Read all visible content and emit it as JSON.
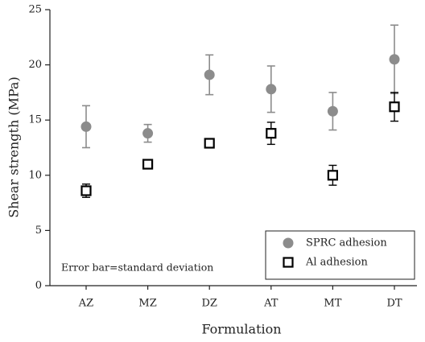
{
  "chart_data": {
    "type": "scatter-errorbar",
    "x_label": "Formulation",
    "y_label": "Shear strength (MPa)",
    "annotation": "Error bar=standard deviation",
    "categories": [
      "AZ",
      "MZ",
      "DZ",
      "AT",
      "MT",
      "DT"
    ],
    "ylim": [
      0,
      25
    ],
    "yticks": [
      0,
      5,
      10,
      15,
      20,
      25
    ],
    "legend": "lower right",
    "series": [
      {
        "name": "SPRC adhesion",
        "color": "#8c8c8c",
        "marker": "circle",
        "values": [
          14.4,
          13.8,
          19.1,
          17.8,
          15.8,
          20.5
        ],
        "errors": [
          1.9,
          0.8,
          1.8,
          2.1,
          1.7,
          3.1
        ]
      },
      {
        "name": "Al adhesion",
        "color": "#000000",
        "marker": "square",
        "values": [
          8.6,
          11.0,
          12.9,
          13.8,
          10.0,
          16.2
        ],
        "errors": [
          0.6,
          0.3,
          0.4,
          1.0,
          0.9,
          1.3
        ]
      }
    ]
  }
}
